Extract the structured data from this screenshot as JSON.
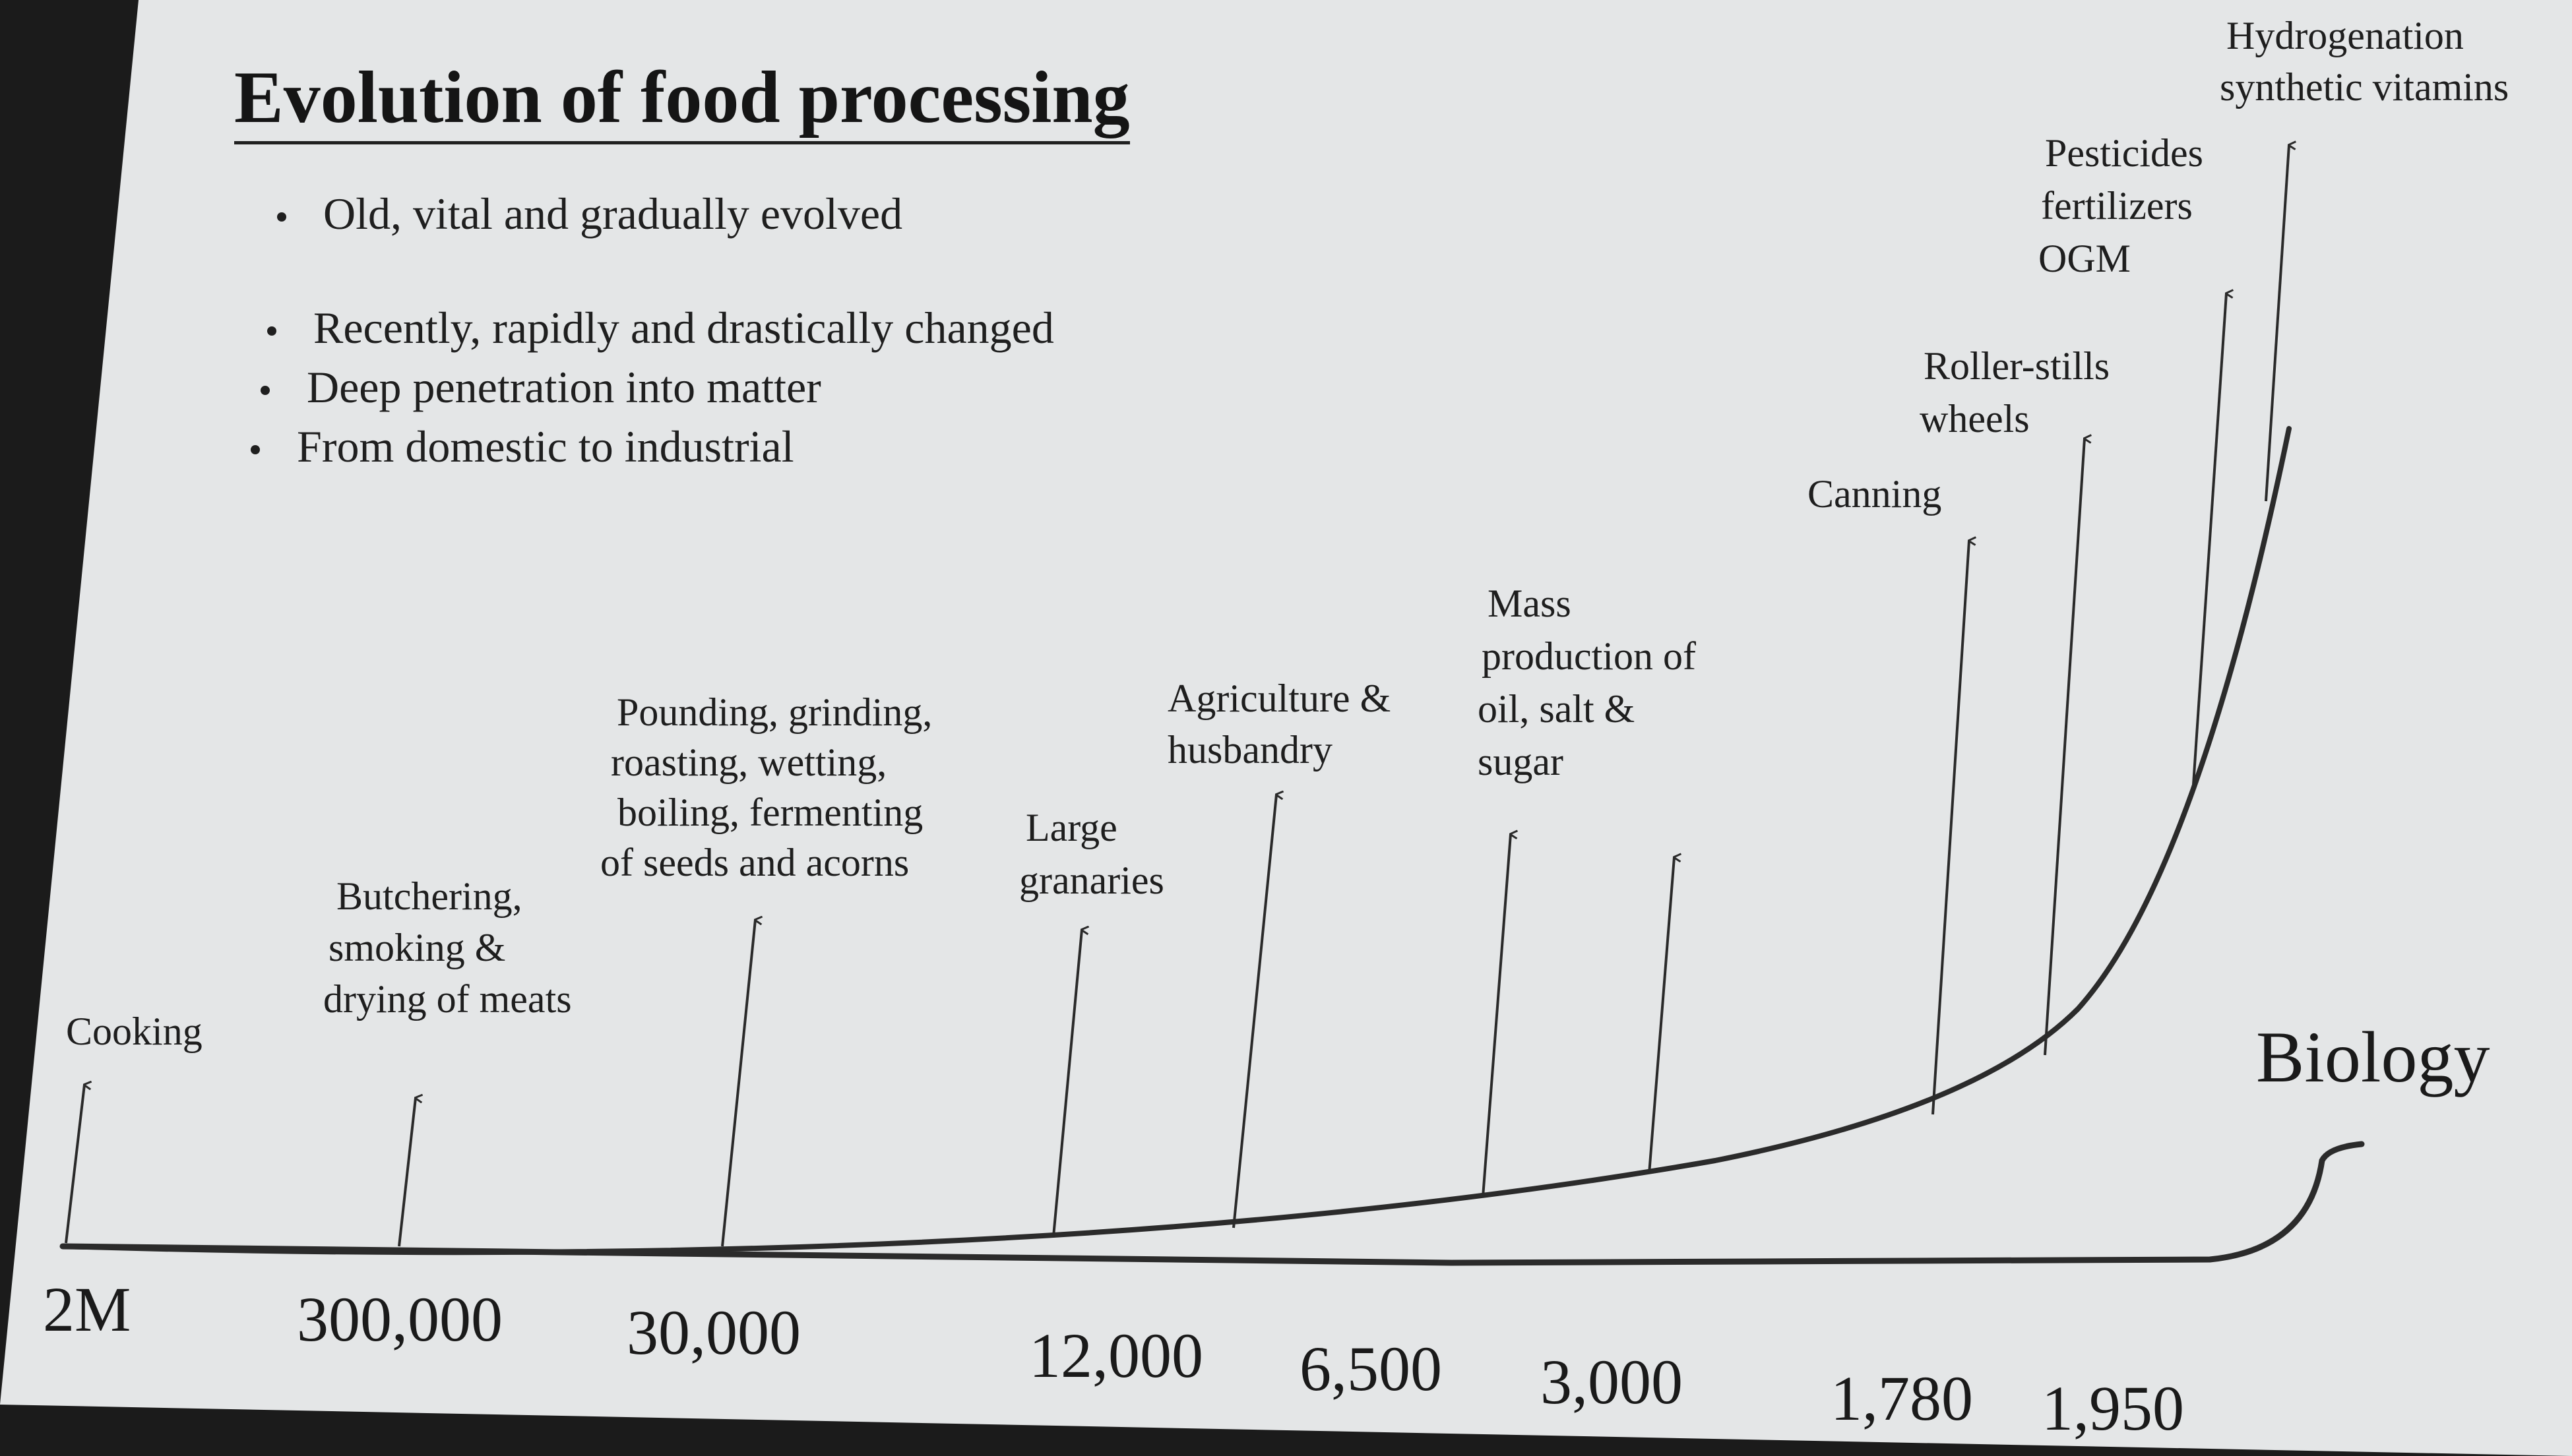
{
  "slide": {
    "title": "Evolution of food processing",
    "bullets": [
      "Old, vital and gradually evolved",
      "Recently, rapidly and drastically changed",
      "Deep penetration into matter",
      "From domestic to industrial"
    ]
  },
  "timeline": {
    "milestones": [
      {
        "id": "cooking",
        "lines": [
          "Cooking"
        ]
      },
      {
        "id": "butchering",
        "lines": [
          "Butchering,",
          "smoking &",
          "drying of meats"
        ]
      },
      {
        "id": "pounding",
        "lines": [
          "Pounding, grinding,",
          "roasting, wetting,",
          "boiling, fermenting",
          "of seeds and acorns"
        ]
      },
      {
        "id": "granaries",
        "lines": [
          "Large",
          "granaries"
        ]
      },
      {
        "id": "agriculture",
        "lines": [
          "Agriculture &",
          "husbandry"
        ]
      },
      {
        "id": "mass-production",
        "lines": [
          "Mass",
          "production of",
          "oil, salt &",
          "sugar"
        ]
      },
      {
        "id": "canning",
        "lines": [
          "Canning"
        ]
      },
      {
        "id": "roller-stills",
        "lines": [
          "Roller-stills",
          "wheels"
        ]
      },
      {
        "id": "pesticides",
        "lines": [
          "Pesticides",
          "fertilizers",
          "OGM"
        ]
      },
      {
        "id": "hydrogenation",
        "lines": [
          "Hydrogenation",
          "synthetic vitamins"
        ]
      }
    ],
    "years": [
      "2M",
      "300,000",
      "30,000",
      "12,000",
      "6,500",
      "3,000",
      "1,780",
      "1,950"
    ],
    "biology_label": "Biology"
  },
  "colors": {
    "slide": "#e4e6e7",
    "ink": "#1e1e1e",
    "surround": "#1b1b1b"
  }
}
